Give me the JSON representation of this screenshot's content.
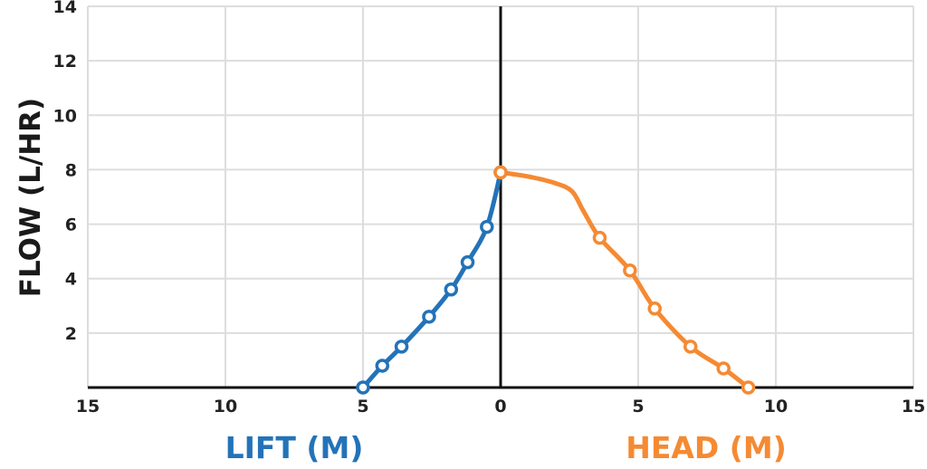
{
  "chart_data": {
    "type": "line",
    "ylabel": "FLOW (L/HR)",
    "x_left_label": "LIFT (M)",
    "x_right_label": "HEAD (M)",
    "x_ticks": [
      "15",
      "10",
      "5",
      "0",
      "5",
      "10",
      "15"
    ],
    "y_ticks": [
      "2",
      "4",
      "6",
      "8",
      "10",
      "12",
      "14"
    ],
    "xlim_lift": [
      0,
      15
    ],
    "xlim_head": [
      0,
      15
    ],
    "ylim": [
      0,
      14
    ],
    "grid": true,
    "series": [
      {
        "side": "lift",
        "color": "#2373b8",
        "points": [
          [
            5.0,
            0.0
          ],
          [
            4.3,
            0.8
          ],
          [
            3.6,
            1.5
          ],
          [
            2.6,
            2.6
          ],
          [
            1.8,
            3.6
          ],
          [
            1.2,
            4.6
          ],
          [
            0.5,
            5.9
          ],
          [
            0.0,
            7.9
          ]
        ]
      },
      {
        "side": "head",
        "color": "#f58a33",
        "points": [
          [
            0.0,
            7.9
          ],
          [
            3.6,
            5.5
          ],
          [
            4.7,
            4.3
          ],
          [
            5.6,
            2.9
          ],
          [
            6.9,
            1.5
          ],
          [
            8.1,
            0.7
          ],
          [
            9.0,
            0.0
          ]
        ],
        "curve": [
          [
            0.0,
            7.9
          ],
          [
            1.0,
            7.75
          ],
          [
            2.0,
            7.5
          ],
          [
            2.6,
            7.2
          ],
          [
            3.0,
            6.5
          ],
          [
            3.6,
            5.5
          ],
          [
            4.7,
            4.3
          ],
          [
            5.6,
            2.9
          ],
          [
            6.9,
            1.5
          ],
          [
            8.1,
            0.7
          ],
          [
            9.0,
            0.0
          ]
        ]
      }
    ]
  },
  "colors": {
    "axis": "#111111",
    "grid": "#dddddd",
    "lift": "#2373b8",
    "head": "#f58a33"
  }
}
